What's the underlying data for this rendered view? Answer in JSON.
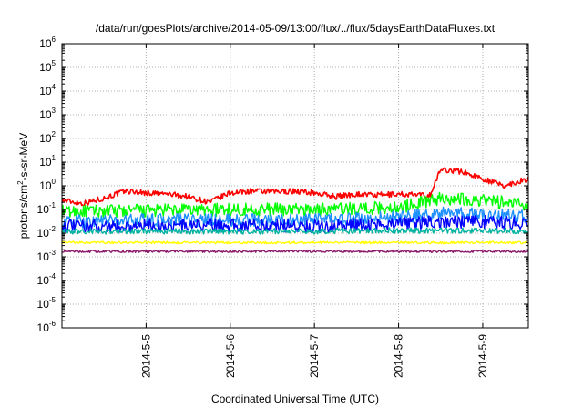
{
  "chart_data": {
    "type": "line",
    "title": "/data/run/goesPlots/archive/2014-05-09/13:00/flux/../flux/5daysEarthDataFluxes.txt",
    "xlabel": "Coordinated Universal Time (UTC)",
    "ylabel_parts": {
      "prefix": "protons/cm",
      "sup": "2",
      "suffix": "-s-sr-MeV"
    },
    "y_scale": "log",
    "ylim": [
      1e-06,
      1000000.0
    ],
    "y_ticks": [
      {
        "base": "10",
        "exp": "-6"
      },
      {
        "base": "10",
        "exp": "-5"
      },
      {
        "base": "10",
        "exp": "-4"
      },
      {
        "base": "10",
        "exp": "-3"
      },
      {
        "base": "10",
        "exp": "-2"
      },
      {
        "base": "10",
        "exp": "-1"
      },
      {
        "base": "10",
        "exp": "0"
      },
      {
        "base": "10",
        "exp": "1"
      },
      {
        "base": "10",
        "exp": "2"
      },
      {
        "base": "10",
        "exp": "3"
      },
      {
        "base": "10",
        "exp": "4"
      },
      {
        "base": "10",
        "exp": "5"
      },
      {
        "base": "10",
        "exp": "6"
      }
    ],
    "x_range": [
      "2014-05-04 00:00",
      "2014-05-09 13:00"
    ],
    "x_ticks": [
      "2014-5-5",
      "2014-5-6",
      "2014-5-7",
      "2014-5-8",
      "2014-5-9"
    ],
    "grid": true,
    "series": [
      {
        "color": "#ff0000",
        "x": [
          "2014-05-04 00:00",
          "2014-05-04 06:00",
          "2014-05-04 12:00",
          "2014-05-04 18:00",
          "2014-05-05 00:00",
          "2014-05-05 06:00",
          "2014-05-05 12:00",
          "2014-05-05 18:00",
          "2014-05-06 00:00",
          "2014-05-06 06:00",
          "2014-05-06 12:00",
          "2014-05-06 18:00",
          "2014-05-07 00:00",
          "2014-05-07 06:00",
          "2014-05-07 12:00",
          "2014-05-07 18:00",
          "2014-05-08 00:00",
          "2014-05-08 06:00",
          "2014-05-08 09:00",
          "2014-05-08 12:00",
          "2014-05-08 18:00",
          "2014-05-09 00:00",
          "2014-05-09 06:00",
          "2014-05-09 13:00"
        ],
        "y": [
          0.25,
          0.18,
          0.3,
          0.6,
          0.5,
          0.45,
          0.35,
          0.2,
          0.5,
          0.6,
          0.55,
          0.6,
          0.5,
          0.35,
          0.45,
          0.4,
          0.45,
          0.4,
          0.4,
          5,
          4,
          2,
          1,
          2
        ]
      },
      {
        "color": "#00ff00",
        "x": [
          "2014-05-04 00:00",
          "2014-05-05 00:00",
          "2014-05-06 00:00",
          "2014-05-07 00:00",
          "2014-05-08 00:00",
          "2014-05-08 12:00",
          "2014-05-09 00:00",
          "2014-05-09 13:00"
        ],
        "y": [
          0.08,
          0.09,
          0.1,
          0.1,
          0.12,
          0.3,
          0.25,
          0.15
        ]
      },
      {
        "color": "#1e90ff",
        "x": [
          "2014-05-04 00:00",
          "2014-05-05 00:00",
          "2014-05-06 00:00",
          "2014-05-07 00:00",
          "2014-05-08 00:00",
          "2014-05-08 12:00",
          "2014-05-09 00:00",
          "2014-05-09 13:00"
        ],
        "y": [
          0.03,
          0.035,
          0.035,
          0.035,
          0.045,
          0.07,
          0.06,
          0.05
        ]
      },
      {
        "color": "#0000ff",
        "x": [
          "2014-05-04 00:00",
          "2014-05-05 00:00",
          "2014-05-06 00:00",
          "2014-05-07 00:00",
          "2014-05-08 00:00",
          "2014-05-08 12:00",
          "2014-05-09 00:00",
          "2014-05-09 13:00"
        ],
        "y": [
          0.02,
          0.02,
          0.022,
          0.02,
          0.025,
          0.03,
          0.03,
          0.025
        ]
      },
      {
        "color": "#00b3a0",
        "x": [
          "2014-05-04 00:00",
          "2014-05-05 00:00",
          "2014-05-06 00:00",
          "2014-05-07 00:00",
          "2014-05-08 00:00",
          "2014-05-09 00:00",
          "2014-05-09 13:00"
        ],
        "y": [
          0.012,
          0.012,
          0.012,
          0.012,
          0.013,
          0.013,
          0.012
        ]
      },
      {
        "color": "#ffff00",
        "x": [
          "2014-05-04 00:00",
          "2014-05-05 00:00",
          "2014-05-06 00:00",
          "2014-05-07 00:00",
          "2014-05-08 00:00",
          "2014-05-09 00:00",
          "2014-05-09 13:00"
        ],
        "y": [
          0.004,
          0.004,
          0.004,
          0.004,
          0.004,
          0.004,
          0.004
        ]
      },
      {
        "color": "#8b1a6b",
        "x": [
          "2014-05-04 00:00",
          "2014-05-05 00:00",
          "2014-05-06 00:00",
          "2014-05-07 00:00",
          "2014-05-08 00:00",
          "2014-05-09 00:00",
          "2014-05-09 13:00"
        ],
        "y": [
          0.0017,
          0.0017,
          0.0017,
          0.0017,
          0.0017,
          0.0017,
          0.0017
        ]
      }
    ]
  }
}
